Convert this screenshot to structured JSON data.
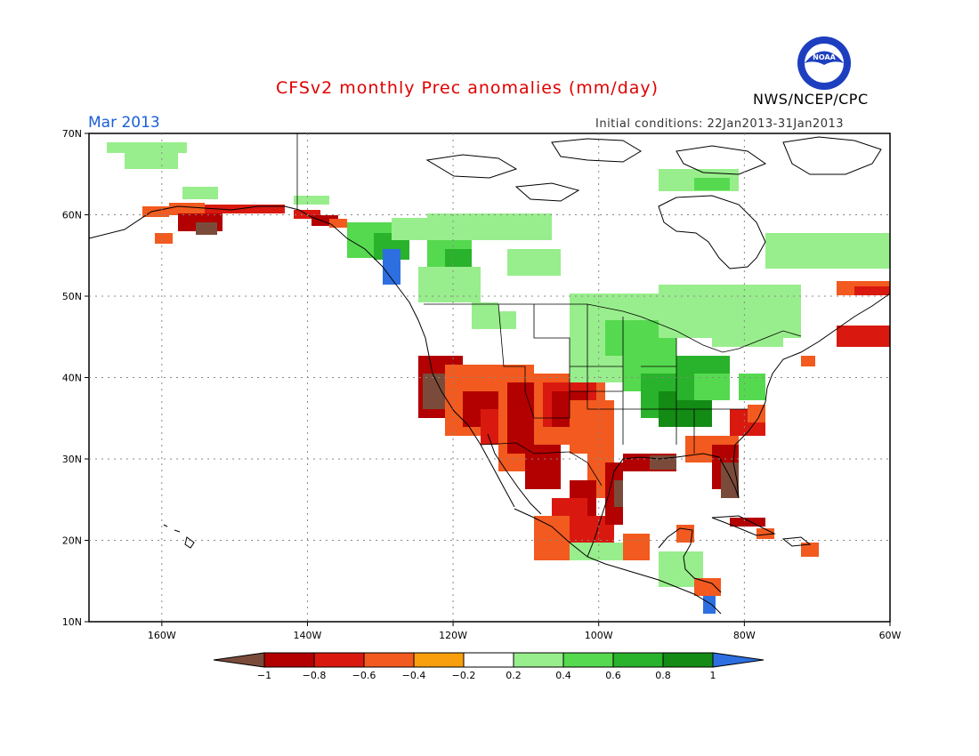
{
  "header": {
    "title": "CFSv2 monthly Prec anomalies (mm/day)",
    "month": "Mar 2013",
    "agency": "NWS/NCEP/CPC",
    "initial_conditions": "Initial conditions: 22Jan2013-31Jan2013",
    "logo_text": "NOAA"
  },
  "map": {
    "lat_labels": [
      "70N",
      "60N",
      "50N",
      "40N",
      "30N",
      "20N",
      "10N"
    ],
    "lon_labels": [
      "160W",
      "140W",
      "120W",
      "100W",
      "80W",
      "60W"
    ],
    "extent": {
      "lon": [
        -170,
        -60
      ],
      "lat": [
        10,
        70
      ]
    }
  },
  "colorbar": {
    "labels": [
      "−1",
      "−0.8",
      "−0.6",
      "−0.4",
      "−0.2",
      "0.2",
      "0.4",
      "0.6",
      "0.8",
      "1"
    ],
    "colors": [
      "#7a4b3a",
      "#b30000",
      "#d9190f",
      "#f25a1f",
      "#f99e0c",
      "#ffffff",
      "#98ee8c",
      "#55d94f",
      "#29b22b",
      "#138b14",
      "#2d6fe0"
    ]
  }
}
